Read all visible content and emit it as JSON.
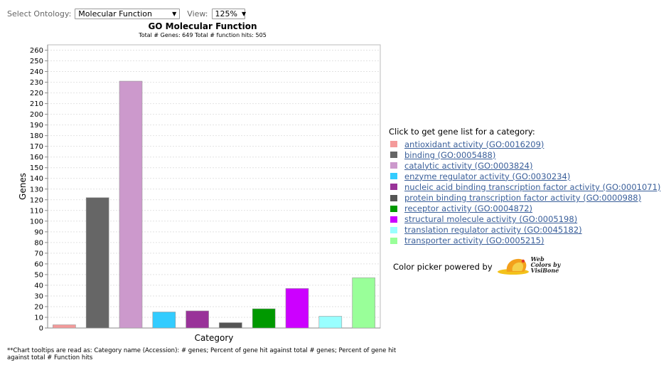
{
  "controls": {
    "ontology_label": "Select Ontology:",
    "ontology_value": "Molecular Function",
    "view_label": "View:",
    "view_value": "125%"
  },
  "chart_data": {
    "type": "bar",
    "title": "GO Molecular Function",
    "subtitle": "Total # Genes: 649    Total # function hits: 505",
    "xlabel": "Category",
    "ylabel": "Genes",
    "ylim": [
      0,
      265
    ],
    "ytick_step": 10,
    "grid": true,
    "categories": [
      "antioxidant activity (GO:0016209)",
      "binding (GO:0005488)",
      "catalytic activity (GO:0003824)",
      "enzyme regulator activity (GO:0030234)",
      "nucleic acid binding transcription factor activity (GO:0001071)",
      "protein binding transcription factor activity (GO:0000988)",
      "receptor activity (GO:0004872)",
      "structural molecule activity (GO:0005198)",
      "translation regulator activity (GO:0045182)",
      "transporter activity (GO:0005215)"
    ],
    "values": [
      3,
      122,
      231,
      15,
      16,
      5,
      18,
      37,
      11,
      47
    ],
    "colors": [
      "#f49a9a",
      "#666666",
      "#cc99cc",
      "#33ccff",
      "#993399",
      "#555555",
      "#009900",
      "#cc00ff",
      "#99ffff",
      "#99ff99"
    ]
  },
  "legend": {
    "title": "Click to get gene list for a category:"
  },
  "powered": {
    "text": "Color picker powered by",
    "logo_lines": [
      "Web",
      "Colors by",
      "VisiBone"
    ]
  },
  "footnote": "**Chart tooltips are read as: Category name (Accession): # genes; Percent of gene hit against total # genes; Percent of gene hit against total # Function hits"
}
